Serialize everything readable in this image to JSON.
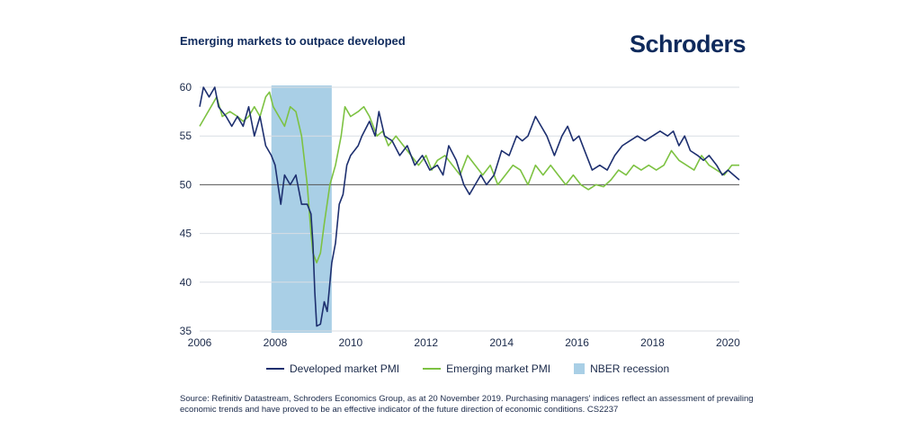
{
  "header": {
    "title": "Emerging markets to outpace developed",
    "brand": "Schroders"
  },
  "legend": {
    "developed": "Developed market PMI",
    "emerging": "Emerging market PMI",
    "recession": "NBER recession"
  },
  "source": "Source: Refinitiv Datastream, Schroders Economics Group, as at 20 November 2019. Purchasing managers' indices reflect an assessment of prevailing economic trends and have proved to be an effective indicator of the future direction of economic conditions. CS2237",
  "colors": {
    "developed": "#1d2f6f",
    "emerging": "#7dc242",
    "recession": "#a9cfe6",
    "grid": "#d9dde3",
    "reference": "#555555"
  },
  "chart_data": {
    "type": "line",
    "title": "Emerging markets to outpace developed",
    "xlim": [
      2006,
      2020.3
    ],
    "ylim": [
      35,
      60
    ],
    "xticks": [
      2006,
      2008,
      2010,
      2012,
      2014,
      2016,
      2018,
      2020
    ],
    "yticks": [
      35,
      40,
      45,
      50,
      55,
      60
    ],
    "reference_line": 50,
    "grid": true,
    "legend_position": "bottom",
    "shaded_regions": [
      {
        "name": "NBER recession",
        "x0": 2007.9,
        "x1": 2009.5
      }
    ],
    "series": [
      {
        "name": "Developed market PMI",
        "color": "#1d2f6f",
        "points": [
          [
            2006.0,
            58
          ],
          [
            2006.1,
            60
          ],
          [
            2006.25,
            59
          ],
          [
            2006.4,
            60
          ],
          [
            2006.5,
            58
          ],
          [
            2006.7,
            57
          ],
          [
            2006.85,
            56
          ],
          [
            2007.0,
            57
          ],
          [
            2007.15,
            56
          ],
          [
            2007.3,
            58
          ],
          [
            2007.45,
            55
          ],
          [
            2007.6,
            57
          ],
          [
            2007.75,
            54
          ],
          [
            2007.9,
            53
          ],
          [
            2008.0,
            52
          ],
          [
            2008.15,
            48
          ],
          [
            2008.25,
            51
          ],
          [
            2008.4,
            50
          ],
          [
            2008.55,
            51
          ],
          [
            2008.7,
            48
          ],
          [
            2008.85,
            48
          ],
          [
            2008.95,
            47
          ],
          [
            2009.0,
            44
          ],
          [
            2009.05,
            39
          ],
          [
            2009.1,
            35.5
          ],
          [
            2009.2,
            35.7
          ],
          [
            2009.3,
            38
          ],
          [
            2009.38,
            37
          ],
          [
            2009.5,
            42
          ],
          [
            2009.6,
            44
          ],
          [
            2009.7,
            48
          ],
          [
            2009.8,
            49
          ],
          [
            2009.9,
            52
          ],
          [
            2010.0,
            53
          ],
          [
            2010.2,
            54
          ],
          [
            2010.3,
            55
          ],
          [
            2010.5,
            56.5
          ],
          [
            2010.65,
            55
          ],
          [
            2010.75,
            57.5
          ],
          [
            2010.9,
            55
          ],
          [
            2011.1,
            54.5
          ],
          [
            2011.3,
            53
          ],
          [
            2011.5,
            54
          ],
          [
            2011.7,
            52
          ],
          [
            2011.9,
            53
          ],
          [
            2012.1,
            51.5
          ],
          [
            2012.3,
            52
          ],
          [
            2012.45,
            51
          ],
          [
            2012.6,
            54
          ],
          [
            2012.8,
            52.5
          ],
          [
            2013.0,
            50
          ],
          [
            2013.15,
            49
          ],
          [
            2013.3,
            50
          ],
          [
            2013.45,
            51
          ],
          [
            2013.6,
            50
          ],
          [
            2013.8,
            51
          ],
          [
            2014.0,
            53.5
          ],
          [
            2014.2,
            53
          ],
          [
            2014.4,
            55
          ],
          [
            2014.55,
            54.5
          ],
          [
            2014.7,
            55
          ],
          [
            2014.9,
            57
          ],
          [
            2015.05,
            56
          ],
          [
            2015.2,
            55
          ],
          [
            2015.4,
            53
          ],
          [
            2015.6,
            55
          ],
          [
            2015.75,
            56
          ],
          [
            2015.9,
            54.5
          ],
          [
            2016.05,
            55
          ],
          [
            2016.25,
            53
          ],
          [
            2016.4,
            51.5
          ],
          [
            2016.6,
            52
          ],
          [
            2016.8,
            51.5
          ],
          [
            2017.0,
            53
          ],
          [
            2017.2,
            54
          ],
          [
            2017.4,
            54.5
          ],
          [
            2017.6,
            55
          ],
          [
            2017.8,
            54.5
          ],
          [
            2018.0,
            55
          ],
          [
            2018.2,
            55.5
          ],
          [
            2018.4,
            55
          ],
          [
            2018.55,
            55.5
          ],
          [
            2018.7,
            54
          ],
          [
            2018.85,
            55
          ],
          [
            2019.0,
            53.5
          ],
          [
            2019.2,
            53
          ],
          [
            2019.35,
            52.5
          ],
          [
            2019.5,
            53
          ],
          [
            2019.7,
            52
          ],
          [
            2019.85,
            51
          ],
          [
            2020.0,
            51.5
          ],
          [
            2020.15,
            51
          ],
          [
            2020.3,
            50.5
          ]
        ]
      },
      {
        "name": "Emerging market PMI",
        "color": "#7dc242",
        "points": [
          [
            2006.0,
            56
          ],
          [
            2006.15,
            57
          ],
          [
            2006.3,
            58
          ],
          [
            2006.45,
            59
          ],
          [
            2006.6,
            57
          ],
          [
            2006.8,
            57.5
          ],
          [
            2007.0,
            57
          ],
          [
            2007.15,
            56.5
          ],
          [
            2007.3,
            57
          ],
          [
            2007.45,
            58
          ],
          [
            2007.6,
            57
          ],
          [
            2007.75,
            59
          ],
          [
            2007.85,
            59.5
          ],
          [
            2007.95,
            58
          ],
          [
            2008.1,
            57
          ],
          [
            2008.25,
            56
          ],
          [
            2008.4,
            58
          ],
          [
            2008.55,
            57.5
          ],
          [
            2008.7,
            55
          ],
          [
            2008.85,
            50
          ],
          [
            2008.95,
            45
          ],
          [
            2009.0,
            43
          ],
          [
            2009.1,
            42
          ],
          [
            2009.2,
            43
          ],
          [
            2009.3,
            46
          ],
          [
            2009.45,
            50
          ],
          [
            2009.6,
            52
          ],
          [
            2009.75,
            55
          ],
          [
            2009.85,
            58
          ],
          [
            2010.0,
            57
          ],
          [
            2010.2,
            57.5
          ],
          [
            2010.35,
            58
          ],
          [
            2010.5,
            57
          ],
          [
            2010.7,
            55
          ],
          [
            2010.85,
            55.5
          ],
          [
            2011.0,
            54
          ],
          [
            2011.2,
            55
          ],
          [
            2011.4,
            54
          ],
          [
            2011.6,
            53
          ],
          [
            2011.8,
            52
          ],
          [
            2012.0,
            53
          ],
          [
            2012.15,
            51.5
          ],
          [
            2012.3,
            52.5
          ],
          [
            2012.5,
            53
          ],
          [
            2012.7,
            52
          ],
          [
            2012.9,
            51
          ],
          [
            2013.1,
            53
          ],
          [
            2013.3,
            52
          ],
          [
            2013.5,
            51
          ],
          [
            2013.7,
            52
          ],
          [
            2013.9,
            50
          ],
          [
            2014.1,
            51
          ],
          [
            2014.3,
            52
          ],
          [
            2014.5,
            51.5
          ],
          [
            2014.7,
            50
          ],
          [
            2014.9,
            52
          ],
          [
            2015.1,
            51
          ],
          [
            2015.3,
            52
          ],
          [
            2015.5,
            51
          ],
          [
            2015.7,
            50
          ],
          [
            2015.9,
            51
          ],
          [
            2016.1,
            50
          ],
          [
            2016.3,
            49.5
          ],
          [
            2016.5,
            50
          ],
          [
            2016.7,
            49.8
          ],
          [
            2016.9,
            50.5
          ],
          [
            2017.1,
            51.5
          ],
          [
            2017.3,
            51
          ],
          [
            2017.5,
            52
          ],
          [
            2017.7,
            51.5
          ],
          [
            2017.9,
            52
          ],
          [
            2018.1,
            51.5
          ],
          [
            2018.3,
            52
          ],
          [
            2018.5,
            53.5
          ],
          [
            2018.7,
            52.5
          ],
          [
            2018.9,
            52
          ],
          [
            2019.1,
            51.5
          ],
          [
            2019.3,
            53
          ],
          [
            2019.5,
            52
          ],
          [
            2019.7,
            51.5
          ],
          [
            2019.9,
            51
          ],
          [
            2020.1,
            52
          ],
          [
            2020.3,
            52
          ]
        ]
      }
    ]
  }
}
